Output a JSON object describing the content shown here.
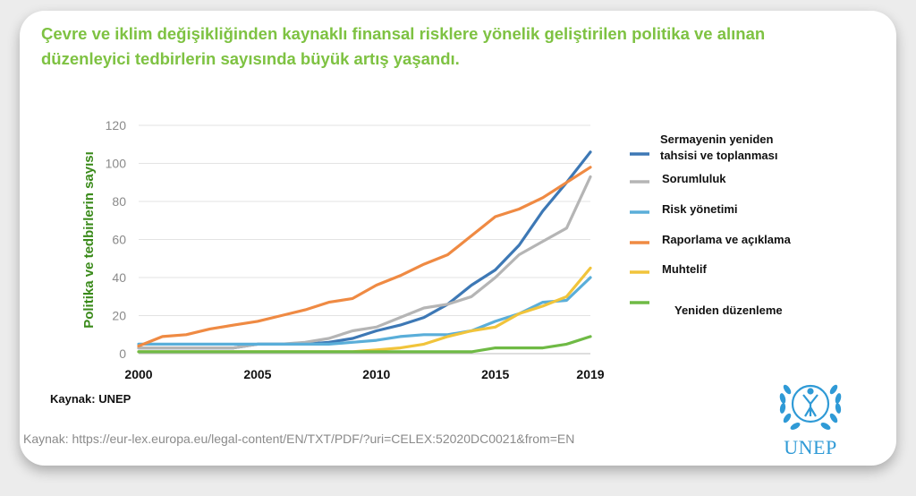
{
  "title": "Çevre ve iklim değişikliğinden kaynaklı finansal risklere yönelik geliştirilen politika ve alınan düzenleyici tedbirlerin sayısında büyük artış yaşandı.",
  "source_inner": "Kaynak: UNEP",
  "source_url": "Kaynak: https://eur-lex.europa.eu/legal-content/EN/TXT/PDF/?uri=CELEX:52020DC0021&from=EN",
  "logo_text": "UNEP",
  "icons": [
    "unep-laurel-logo-icon"
  ],
  "chart_data": {
    "type": "line",
    "title": "",
    "xlabel": "",
    "ylabel": "Politika ve tedbirlerin sayısı",
    "xlim": [
      2000,
      2019
    ],
    "ylim": [
      0,
      120
    ],
    "xticks": [
      2000,
      2005,
      2010,
      2015,
      2019
    ],
    "yticks": [
      0,
      20,
      40,
      60,
      80,
      100,
      120
    ],
    "grid": "horizontal",
    "legend_position": "right",
    "x": [
      2000,
      2001,
      2002,
      2003,
      2004,
      2005,
      2006,
      2007,
      2008,
      2009,
      2010,
      2011,
      2012,
      2013,
      2014,
      2015,
      2016,
      2017,
      2018,
      2019
    ],
    "series": [
      {
        "name": "Sermayenin yeniden tahsisi ve toplanması",
        "legend_lines": [
          "Sermayenin yeniden",
          "tahsisi ve toplanması"
        ],
        "color": "#3d78b5",
        "values": [
          3,
          3,
          3,
          3,
          3,
          5,
          5,
          5,
          6,
          8,
          12,
          15,
          19,
          26,
          36,
          44,
          57,
          75,
          90,
          106
        ]
      },
      {
        "name": "Sorumluluk",
        "legend_lines": [
          "Sorumluluk"
        ],
        "color": "#b5b5b5",
        "values": [
          3,
          3,
          3,
          3,
          3,
          5,
          5,
          6,
          8,
          12,
          14,
          19,
          24,
          26,
          30,
          40,
          52,
          59,
          66,
          93
        ]
      },
      {
        "name": "Risk yönetimi",
        "legend_lines": [
          "Risk yönetimi"
        ],
        "color": "#5aaed9",
        "values": [
          5,
          5,
          5,
          5,
          5,
          5,
          5,
          5,
          5,
          6,
          7,
          9,
          10,
          10,
          12,
          17,
          21,
          27,
          28,
          40
        ]
      },
      {
        "name": "Raporlama ve açıklama",
        "legend_lines": [
          "Raporlama ve açıklama"
        ],
        "color": "#ef8a43",
        "values": [
          4,
          9,
          10,
          13,
          15,
          17,
          20,
          23,
          27,
          29,
          36,
          41,
          47,
          52,
          62,
          72,
          76,
          82,
          90,
          98
        ]
      },
      {
        "name": "Muhtelif",
        "legend_lines": [
          "Muhtelif"
        ],
        "color": "#f1c43b",
        "values": [
          1,
          1,
          1,
          1,
          1,
          1,
          1,
          1,
          1,
          1,
          2,
          3,
          5,
          9,
          12,
          14,
          21,
          25,
          30,
          45
        ]
      },
      {
        "name": "Yeniden düzenleme",
        "legend_lines": [
          "Yeniden düzenleme"
        ],
        "color": "#6fba45",
        "values": [
          1,
          1,
          1,
          1,
          1,
          1,
          1,
          1,
          1,
          1,
          1,
          1,
          1,
          1,
          1,
          3,
          3,
          3,
          5,
          9
        ]
      }
    ]
  }
}
